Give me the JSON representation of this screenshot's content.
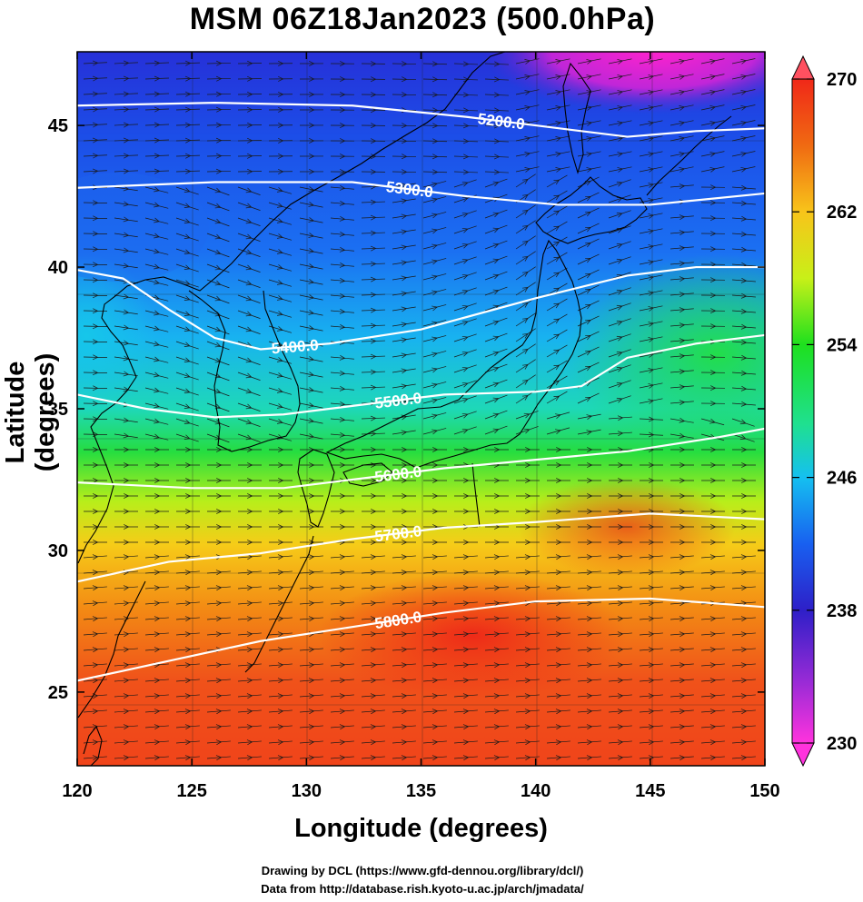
{
  "title": "MSM 06Z18Jan2023 (500.0hPa)",
  "x_axis_label": "Longitude (degrees)",
  "y_axis_label": "Latitude  (degrees)",
  "credit_line_1": "Drawing by DCL (https://www.gfd-dennou.org/library/dcl/)",
  "credit_line_2": "Data from http://database.rish.kyoto-u.ac.jp/arch/jmadata/",
  "chart_data": {
    "type": "heatmap",
    "xlim": [
      120,
      150
    ],
    "ylim": [
      22.4,
      47.6
    ],
    "x_ticks": [
      120,
      125,
      130,
      135,
      140,
      145,
      150
    ],
    "y_ticks": [
      25,
      30,
      35,
      40,
      45
    ],
    "colorbar": {
      "range": [
        230,
        270
      ],
      "ticks": [
        230,
        238,
        246,
        254,
        262,
        270
      ],
      "colors": [
        "#ff33dd",
        "#9b2bd6",
        "#2e1fc8",
        "#1860f0",
        "#15c0f0",
        "#1fe090",
        "#1ee01e",
        "#c8f018",
        "#f8c41a",
        "#f06a12",
        "#f02818",
        "#ff5060"
      ]
    },
    "temperature_field": [
      {
        "lat": 47.6,
        "lon": 120,
        "value": 239
      },
      {
        "lat": 47.6,
        "lon": 135,
        "value": 238
      },
      {
        "lat": 47.6,
        "lon": 143,
        "value": 231
      },
      {
        "lat": 45,
        "lon": 120,
        "value": 240
      },
      {
        "lat": 45,
        "lon": 140,
        "value": 239
      },
      {
        "lat": 45,
        "lon": 150,
        "value": 238
      },
      {
        "lat": 42,
        "lon": 120,
        "value": 242
      },
      {
        "lat": 42,
        "lon": 135,
        "value": 241
      },
      {
        "lat": 42,
        "lon": 150,
        "value": 240
      },
      {
        "lat": 40,
        "lon": 120,
        "value": 245
      },
      {
        "lat": 40,
        "lon": 140,
        "value": 243
      },
      {
        "lat": 40,
        "lon": 150,
        "value": 252
      },
      {
        "lat": 37,
        "lon": 120,
        "value": 248
      },
      {
        "lat": 37,
        "lon": 135,
        "value": 246
      },
      {
        "lat": 37,
        "lon": 150,
        "value": 254
      },
      {
        "lat": 35,
        "lon": 120,
        "value": 252
      },
      {
        "lat": 35,
        "lon": 135,
        "value": 253
      },
      {
        "lat": 35,
        "lon": 150,
        "value": 256
      },
      {
        "lat": 32,
        "lon": 120,
        "value": 258
      },
      {
        "lat": 32,
        "lon": 135,
        "value": 262
      },
      {
        "lat": 32,
        "lon": 150,
        "value": 262
      },
      {
        "lat": 29,
        "lon": 120,
        "value": 264
      },
      {
        "lat": 29,
        "lon": 138,
        "value": 267
      },
      {
        "lat": 29,
        "lon": 150,
        "value": 266
      },
      {
        "lat": 25,
        "lon": 120,
        "value": 266
      },
      {
        "lat": 25,
        "lon": 140,
        "value": 268
      },
      {
        "lat": 25,
        "lon": 150,
        "value": 268
      },
      {
        "lat": 22.4,
        "lon": 120,
        "value": 267
      },
      {
        "lat": 22.4,
        "lon": 150,
        "value": 268
      }
    ],
    "height_contours": [
      {
        "value": 5200,
        "label": "5200.0",
        "points": [
          [
            120,
            45.7
          ],
          [
            126,
            45.8
          ],
          [
            132,
            45.7
          ],
          [
            137,
            45.3
          ],
          [
            140,
            45.0
          ],
          [
            144,
            44.6
          ],
          [
            147,
            44.8
          ],
          [
            150,
            44.9
          ]
        ]
      },
      {
        "value": 5300,
        "label": "5300.0",
        "points": [
          [
            120,
            42.8
          ],
          [
            126,
            43.0
          ],
          [
            132,
            43.0
          ],
          [
            137,
            42.5
          ],
          [
            141,
            42.2
          ],
          [
            145,
            42.2
          ],
          [
            150,
            42.6
          ]
        ]
      },
      {
        "value": 5400,
        "label": "5400.0",
        "points": [
          [
            120,
            39.9
          ],
          [
            122,
            39.6
          ],
          [
            124,
            38.5
          ],
          [
            126,
            37.5
          ],
          [
            128,
            37.1
          ],
          [
            131,
            37.3
          ],
          [
            135,
            37.8
          ],
          [
            140,
            38.9
          ],
          [
            144,
            39.7
          ],
          [
            147,
            40.0
          ],
          [
            150,
            40.0
          ]
        ]
      },
      {
        "value": 5500,
        "label": "5500.0",
        "points": [
          [
            120,
            35.5
          ],
          [
            123,
            35.0
          ],
          [
            126,
            34.7
          ],
          [
            129,
            34.8
          ],
          [
            132,
            35.1
          ],
          [
            136,
            35.5
          ],
          [
            140,
            35.6
          ],
          [
            142,
            35.8
          ],
          [
            144,
            36.8
          ],
          [
            147,
            37.3
          ],
          [
            150,
            37.6
          ]
        ]
      },
      {
        "value": 5600,
        "label": "5600.0",
        "points": [
          [
            120,
            32.4
          ],
          [
            125,
            32.2
          ],
          [
            129,
            32.2
          ],
          [
            132,
            32.5
          ],
          [
            136,
            32.9
          ],
          [
            140,
            33.2
          ],
          [
            144,
            33.5
          ],
          [
            148,
            34.0
          ],
          [
            150,
            34.3
          ]
        ]
      },
      {
        "value": 5700,
        "label": "5700.0",
        "points": [
          [
            120,
            28.9
          ],
          [
            124,
            29.6
          ],
          [
            128,
            29.9
          ],
          [
            132,
            30.4
          ],
          [
            136,
            30.8
          ],
          [
            140,
            31.0
          ],
          [
            145,
            31.3
          ],
          [
            150,
            31.1
          ]
        ]
      },
      {
        "value": 5800,
        "label": "5800.0",
        "points": [
          [
            120,
            25.4
          ],
          [
            124,
            26.1
          ],
          [
            128,
            26.8
          ],
          [
            132,
            27.3
          ],
          [
            136,
            27.8
          ],
          [
            140,
            28.2
          ],
          [
            145,
            28.3
          ],
          [
            150,
            28.0
          ]
        ]
      }
    ],
    "wind": {
      "description": "",
      "points": []
    }
  }
}
